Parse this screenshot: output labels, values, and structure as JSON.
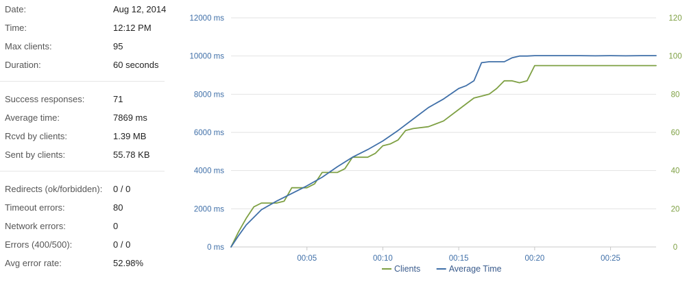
{
  "stats": {
    "general": [
      {
        "label": "Date:",
        "value": "Aug 12, 2014"
      },
      {
        "label": "Time:",
        "value": "12:12 PM"
      },
      {
        "label": "Max clients:",
        "value": "95"
      },
      {
        "label": "Duration:",
        "value": "60 seconds"
      }
    ],
    "responses": [
      {
        "label": "Success responses:",
        "value": "71"
      },
      {
        "label": "Average time:",
        "value": "7869 ms"
      },
      {
        "label": "Rcvd by clients:",
        "value": "1.39 MB"
      },
      {
        "label": "Sent by clients:",
        "value": "55.78 KB"
      }
    ],
    "errors": [
      {
        "label": "Redirects (ok/forbidden):",
        "value": "0 / 0"
      },
      {
        "label": "Timeout errors:",
        "value": "80"
      },
      {
        "label": "Network errors:",
        "value": "0"
      },
      {
        "label": "Errors (400/500):",
        "value": "0 / 0"
      },
      {
        "label": "Avg error rate:",
        "value": "52.98%"
      }
    ]
  },
  "chart_data": {
    "type": "line",
    "x_unit": "seconds",
    "xlim": [
      0,
      28
    ],
    "x_ticks": [
      5,
      10,
      15,
      20,
      25
    ],
    "x_tick_labels": [
      "00:05",
      "00:10",
      "00:15",
      "00:20",
      "00:25"
    ],
    "y_left": {
      "range": [
        0,
        12000
      ],
      "ticks": [
        0,
        2000,
        4000,
        6000,
        8000,
        10000,
        12000
      ],
      "tick_labels": [
        "0 ms",
        "2000 ms",
        "4000 ms",
        "6000 ms",
        "8000 ms",
        "10000 ms",
        "12000 ms"
      ]
    },
    "y_right": {
      "range": [
        0,
        120
      ],
      "ticks": [
        0,
        20,
        40,
        60,
        80,
        100,
        120
      ],
      "tick_labels": [
        "0",
        "20",
        "40",
        "60",
        "80",
        "100",
        "120"
      ]
    },
    "grid": true,
    "legend_position": "bottom-center",
    "series": [
      {
        "name": "Clients",
        "axis": "right",
        "color": "#7ea043",
        "x": [
          0,
          0.5,
          1,
          1.5,
          2,
          2.5,
          3,
          3.5,
          4,
          4.5,
          5,
          5.5,
          6,
          6.5,
          7,
          7.5,
          8,
          8.5,
          9,
          9.5,
          10,
          10.5,
          11,
          11.5,
          12,
          13,
          14,
          15,
          16,
          16.5,
          17,
          17.5,
          18,
          18.5,
          19,
          19.5,
          20,
          21,
          22,
          23,
          24,
          25,
          26,
          27,
          28
        ],
        "y": [
          0,
          8,
          15,
          21,
          23,
          23,
          23,
          24,
          31,
          31,
          31,
          33,
          39,
          39,
          39,
          41,
          47,
          47,
          47,
          49,
          53,
          54,
          56,
          61,
          62,
          63,
          66,
          72,
          78,
          79,
          80,
          83,
          87,
          87,
          86,
          87,
          95,
          95,
          95,
          95,
          95,
          95,
          95,
          95,
          95
        ]
      },
      {
        "name": "Average Time",
        "axis": "left",
        "color": "#3f6fa8",
        "x": [
          0,
          0.5,
          1,
          1.5,
          2,
          3,
          4,
          5,
          6,
          7,
          8,
          9,
          10,
          11,
          12,
          13,
          14,
          15,
          15.5,
          16,
          16.5,
          17,
          17.5,
          18,
          18.5,
          19,
          19.5,
          20,
          21,
          22,
          23,
          24,
          25,
          26,
          27,
          28
        ],
        "y": [
          0,
          600,
          1150,
          1550,
          1950,
          2400,
          2800,
          3200,
          3650,
          4200,
          4700,
          5100,
          5550,
          6100,
          6700,
          7300,
          7750,
          8300,
          8450,
          8700,
          9650,
          9700,
          9700,
          9700,
          9900,
          10000,
          10000,
          10020,
          10020,
          10020,
          10020,
          10010,
          10020,
          10010,
          10020,
          10020
        ]
      }
    ]
  }
}
